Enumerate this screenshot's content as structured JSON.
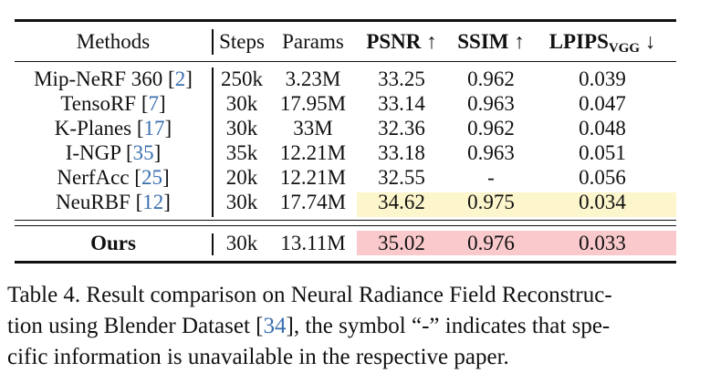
{
  "table": {
    "headers": {
      "methods": "Methods",
      "steps": "Steps",
      "params": "Params",
      "psnr": "PSNR ↑",
      "ssim": "SSIM ↑",
      "lpips_main": "LPIPS",
      "lpips_sub": "VGG",
      "lpips_arrow": " ↓"
    },
    "rows": [
      {
        "name": "Mip-NeRF 360 [",
        "ref": "2",
        "close": "]",
        "steps": "250k",
        "params": "3.23M",
        "psnr": "33.25",
        "ssim": "0.962",
        "lpips": "0.039"
      },
      {
        "name": "TensoRF [",
        "ref": "7",
        "close": "]",
        "steps": "30k",
        "params": "17.95M",
        "psnr": "33.14",
        "ssim": "0.963",
        "lpips": "0.047"
      },
      {
        "name": "K-Planes [",
        "ref": "17",
        "close": "]",
        "steps": "30k",
        "params": "33M",
        "psnr": "32.36",
        "ssim": "0.962",
        "lpips": "0.048"
      },
      {
        "name": "I-NGP [",
        "ref": "35",
        "close": "]",
        "steps": "35k",
        "params": "12.21M",
        "psnr": "33.18",
        "ssim": "0.963",
        "lpips": "0.051"
      },
      {
        "name": "NerfAcc [",
        "ref": "25",
        "close": "]",
        "steps": "20k",
        "params": "12.21M",
        "psnr": "32.55",
        "ssim": "-",
        "lpips": "0.056"
      },
      {
        "name": "NeuRBF [",
        "ref": "12",
        "close": "]",
        "steps": "30k",
        "params": "17.74M",
        "psnr": "34.62",
        "ssim": "0.975",
        "lpips": "0.034"
      }
    ],
    "ours": {
      "name": "Ours",
      "steps": "30k",
      "params": "13.11M",
      "psnr": "35.02",
      "ssim": "0.976",
      "lpips": "0.033"
    },
    "highlight_colors": {
      "second": "#fdf6cc",
      "best": "#f9c9cb"
    }
  },
  "caption": {
    "lines": [
      "Table 4. Result comparison on Neural Radiance Field Reconstruc-",
      "tion using Blender Dataset [",
      "34",
      "], the symbol “-” indicates that spe-",
      "cific information is unavailable in the respective paper."
    ]
  }
}
